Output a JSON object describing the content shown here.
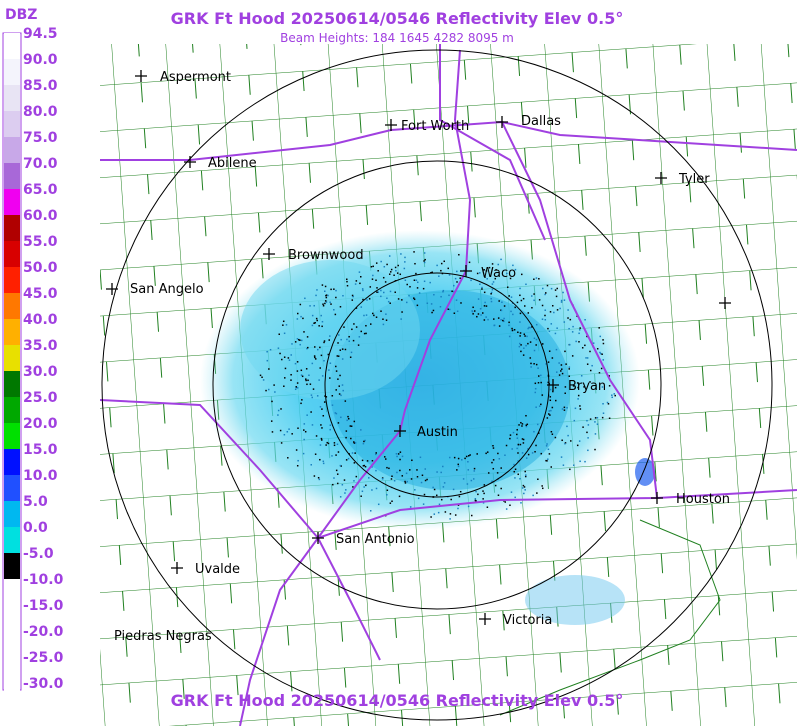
{
  "header": {
    "title": "GRK Ft Hood 20250614/0546 Reflectivity Elev 0.5°",
    "subtitle": "Beam Heights: 184 1645 4282 8095 m"
  },
  "legend": {
    "unit": "DBZ",
    "levels": [
      {
        "label": "94.5",
        "color": "#ffffff"
      },
      {
        "label": "90.0",
        "color": "#f4f4fc"
      },
      {
        "label": "85.0",
        "color": "#e8e4f4"
      },
      {
        "label": "80.0",
        "color": "#dccdf0"
      },
      {
        "label": "75.0",
        "color": "#c8a8e8"
      },
      {
        "label": "70.0",
        "color": "#a868d8"
      },
      {
        "label": "65.0",
        "color": "#f000f0"
      },
      {
        "label": "60.0",
        "color": "#b00000"
      },
      {
        "label": "55.0",
        "color": "#d80000"
      },
      {
        "label": "50.0",
        "color": "#ff2000"
      },
      {
        "label": "45.0",
        "color": "#ff7800"
      },
      {
        "label": "40.0",
        "color": "#ffb000"
      },
      {
        "label": "35.0",
        "color": "#e8e000"
      },
      {
        "label": "30.0",
        "color": "#007800"
      },
      {
        "label": "25.0",
        "color": "#00a800"
      },
      {
        "label": "20.0",
        "color": "#00e000"
      },
      {
        "label": "15.0",
        "color": "#0010ff"
      },
      {
        "label": "10.0",
        "color": "#2050ff"
      },
      {
        "label": "5.0",
        "color": "#00b8f0"
      },
      {
        "label": "0.0",
        "color": "#00e0e0"
      },
      {
        "label": "-5.0",
        "color": "#000000"
      },
      {
        "label": "-10.0",
        "color": "#ffffff"
      },
      {
        "label": "-15.0",
        "color": "#ffffff"
      },
      {
        "label": "-20.0",
        "color": "#ffffff"
      },
      {
        "label": "-25.0",
        "color": "#ffffff"
      },
      {
        "label": "-30.0",
        "color": "#ffffff"
      }
    ]
  },
  "cities": [
    "Aspermont",
    "Fort Worth",
    "Dallas",
    "Abilene",
    "Tyler",
    "Brownwood",
    "Waco",
    "San Angelo",
    "Bryan",
    "Austin",
    "Houston",
    "San Antonio",
    "Uvalde",
    "Victoria",
    "Piedras Negras"
  ]
}
